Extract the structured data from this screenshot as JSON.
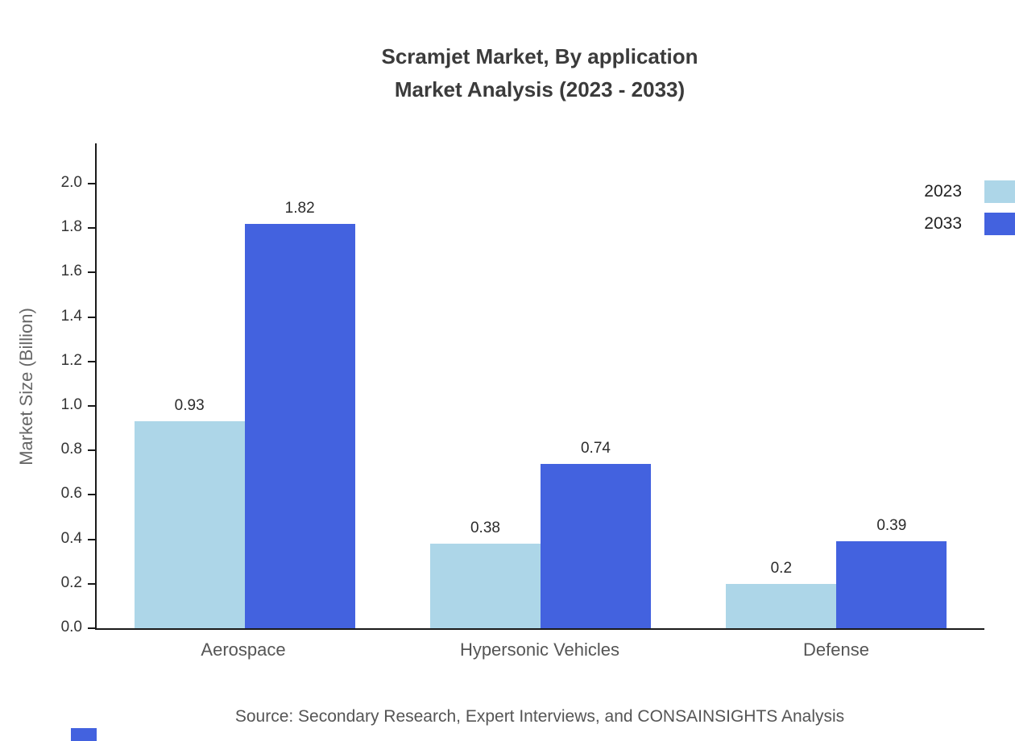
{
  "title": {
    "line1": "Scramjet Market, By application",
    "line2": "Market Analysis (2023 - 2033)"
  },
  "chart_data": {
    "type": "bar",
    "categories": [
      "Aerospace",
      "Hypersonic Vehicles",
      "Defense"
    ],
    "series": [
      {
        "name": "2023",
        "color": "#ADD6E8",
        "values": [
          0.93,
          0.38,
          0.2
        ]
      },
      {
        "name": "2033",
        "color": "#4362DF",
        "values": [
          1.82,
          0.74,
          0.39
        ]
      }
    ],
    "title": "Scramjet Market, By application Market Analysis (2023 - 2033)",
    "xlabel": "",
    "ylabel": "Market Size (Billion)",
    "ylim": [
      0,
      2.0
    ],
    "ytick_step": 0.2,
    "grid": false,
    "legend_position": "top-right"
  },
  "source_text": "Source: Secondary Research, Expert Interviews, and CONSAINSIGHTS Analysis"
}
